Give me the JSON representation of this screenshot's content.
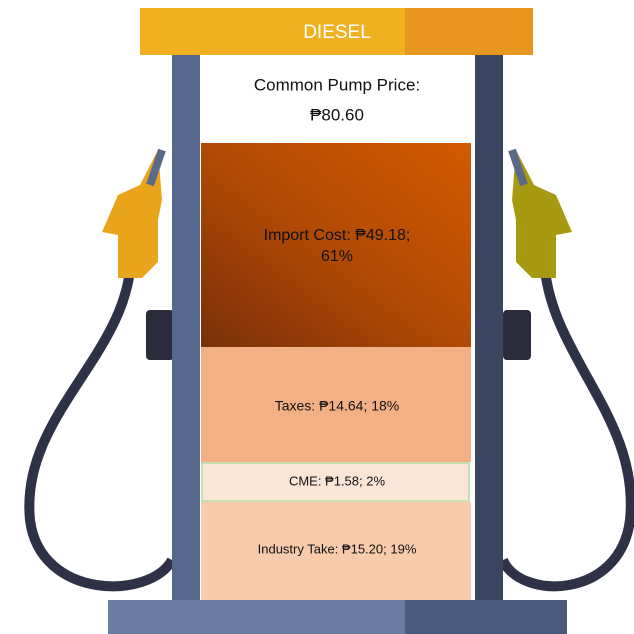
{
  "sign": "DIESEL",
  "price": {
    "label": "Common Pump Price:",
    "value": "₱80.60"
  },
  "segments": [
    {
      "label": "Import Cost: ₱49.18;",
      "label2": "61%"
    },
    {
      "label": "Taxes: ₱14.64; 18%"
    },
    {
      "label": "CME: ₱1.58; 2%"
    },
    {
      "label": "Industry Take: ₱15.20; 19%"
    }
  ]
}
